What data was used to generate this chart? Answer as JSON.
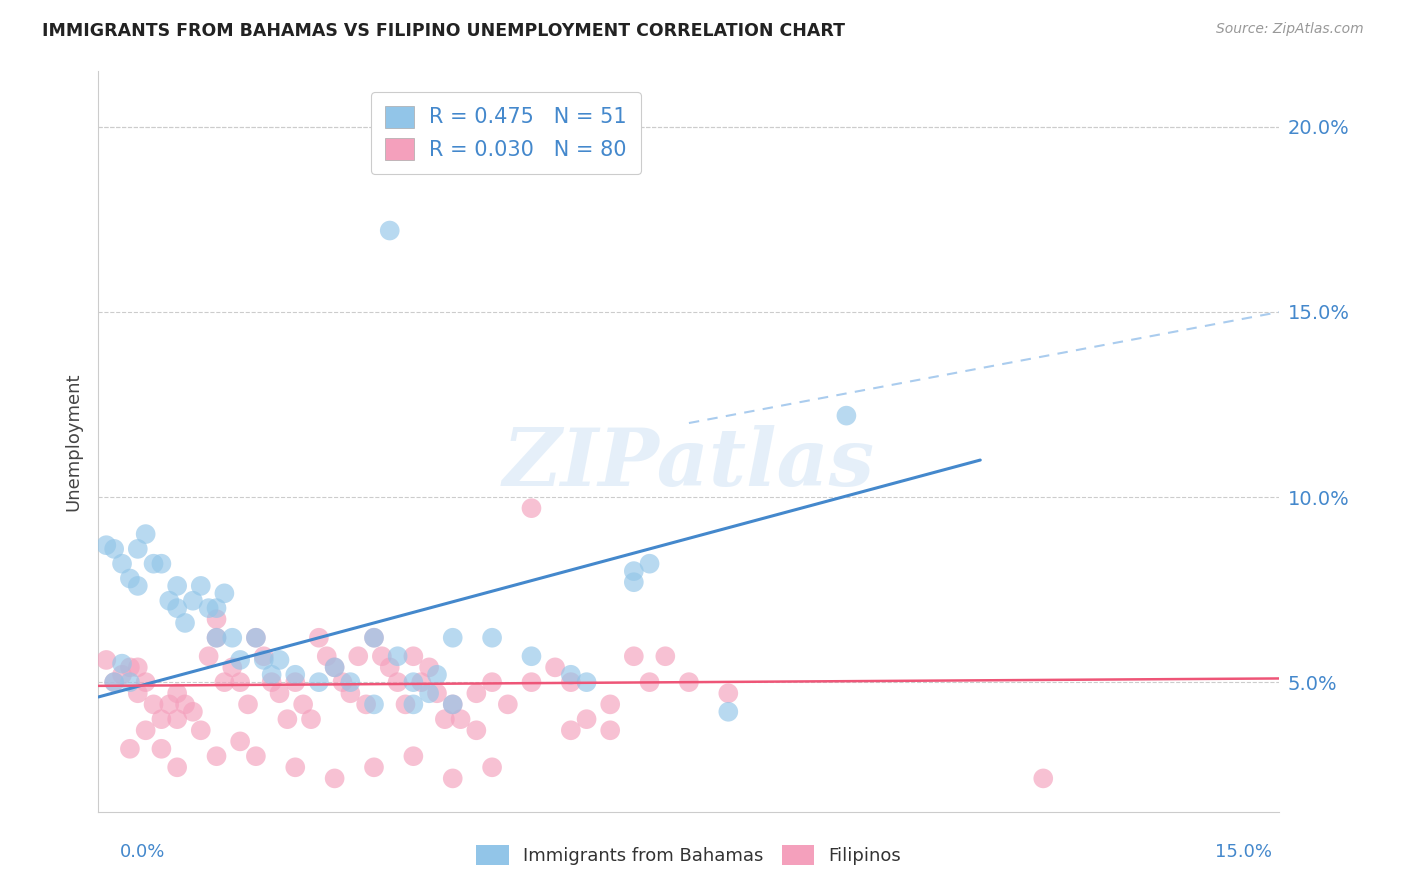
{
  "title": "IMMIGRANTS FROM BAHAMAS VS FILIPINO UNEMPLOYMENT CORRELATION CHART",
  "source": "Source: ZipAtlas.com",
  "ylabel": "Unemployment",
  "xmin": 0.0,
  "xmax": 0.15,
  "ymin": 0.015,
  "ymax": 0.215,
  "yticks": [
    0.05,
    0.1,
    0.15,
    0.2
  ],
  "ytick_labels": [
    "5.0%",
    "10.0%",
    "15.0%",
    "20.0%"
  ],
  "series1_color": "#92C5E8",
  "series2_color": "#F4A0BC",
  "series1_label": "Immigrants from Bahamas",
  "series2_label": "Filipinos",
  "series1_R": 0.475,
  "series1_N": 51,
  "series2_R": 0.03,
  "series2_N": 80,
  "watermark": "ZIPatlas",
  "blue_line_color": "#4488CC",
  "pink_line_color": "#EE5577",
  "dashed_line_color": "#AACCEE",
  "grid_color": "#CCCCCC",
  "axis_label_color": "#4488CC",
  "legend_text_color": "#333333",
  "blue_scatter": [
    [
      0.001,
      0.087
    ],
    [
      0.002,
      0.086
    ],
    [
      0.003,
      0.082
    ],
    [
      0.004,
      0.078
    ],
    [
      0.005,
      0.086
    ],
    [
      0.005,
      0.076
    ],
    [
      0.006,
      0.09
    ],
    [
      0.007,
      0.082
    ],
    [
      0.008,
      0.082
    ],
    [
      0.009,
      0.072
    ],
    [
      0.01,
      0.076
    ],
    [
      0.01,
      0.07
    ],
    [
      0.011,
      0.066
    ],
    [
      0.012,
      0.072
    ],
    [
      0.013,
      0.076
    ],
    [
      0.014,
      0.07
    ],
    [
      0.015,
      0.07
    ],
    [
      0.015,
      0.062
    ],
    [
      0.016,
      0.074
    ],
    [
      0.017,
      0.062
    ],
    [
      0.018,
      0.056
    ],
    [
      0.02,
      0.062
    ],
    [
      0.021,
      0.056
    ],
    [
      0.022,
      0.052
    ],
    [
      0.023,
      0.056
    ],
    [
      0.025,
      0.052
    ],
    [
      0.028,
      0.05
    ],
    [
      0.03,
      0.054
    ],
    [
      0.032,
      0.05
    ],
    [
      0.035,
      0.062
    ],
    [
      0.038,
      0.057
    ],
    [
      0.04,
      0.05
    ],
    [
      0.042,
      0.047
    ],
    [
      0.043,
      0.052
    ],
    [
      0.045,
      0.062
    ],
    [
      0.05,
      0.062
    ],
    [
      0.055,
      0.057
    ],
    [
      0.06,
      0.052
    ],
    [
      0.062,
      0.05
    ],
    [
      0.035,
      0.044
    ],
    [
      0.04,
      0.044
    ],
    [
      0.045,
      0.044
    ],
    [
      0.002,
      0.05
    ],
    [
      0.003,
      0.055
    ],
    [
      0.004,
      0.05
    ],
    [
      0.068,
      0.077
    ],
    [
      0.068,
      0.08
    ],
    [
      0.095,
      0.122
    ],
    [
      0.037,
      0.172
    ],
    [
      0.07,
      0.082
    ],
    [
      0.08,
      0.042
    ]
  ],
  "pink_scatter": [
    [
      0.001,
      0.056
    ],
    [
      0.002,
      0.05
    ],
    [
      0.003,
      0.052
    ],
    [
      0.004,
      0.054
    ],
    [
      0.005,
      0.047
    ],
    [
      0.005,
      0.054
    ],
    [
      0.006,
      0.05
    ],
    [
      0.007,
      0.044
    ],
    [
      0.008,
      0.04
    ],
    [
      0.009,
      0.044
    ],
    [
      0.01,
      0.047
    ],
    [
      0.01,
      0.04
    ],
    [
      0.011,
      0.044
    ],
    [
      0.012,
      0.042
    ],
    [
      0.013,
      0.037
    ],
    [
      0.014,
      0.057
    ],
    [
      0.015,
      0.067
    ],
    [
      0.015,
      0.062
    ],
    [
      0.016,
      0.05
    ],
    [
      0.017,
      0.054
    ],
    [
      0.018,
      0.05
    ],
    [
      0.019,
      0.044
    ],
    [
      0.02,
      0.062
    ],
    [
      0.021,
      0.057
    ],
    [
      0.022,
      0.05
    ],
    [
      0.023,
      0.047
    ],
    [
      0.024,
      0.04
    ],
    [
      0.025,
      0.05
    ],
    [
      0.026,
      0.044
    ],
    [
      0.027,
      0.04
    ],
    [
      0.028,
      0.062
    ],
    [
      0.029,
      0.057
    ],
    [
      0.03,
      0.054
    ],
    [
      0.031,
      0.05
    ],
    [
      0.032,
      0.047
    ],
    [
      0.033,
      0.057
    ],
    [
      0.034,
      0.044
    ],
    [
      0.035,
      0.062
    ],
    [
      0.036,
      0.057
    ],
    [
      0.037,
      0.054
    ],
    [
      0.038,
      0.05
    ],
    [
      0.039,
      0.044
    ],
    [
      0.04,
      0.057
    ],
    [
      0.041,
      0.05
    ],
    [
      0.042,
      0.054
    ],
    [
      0.043,
      0.047
    ],
    [
      0.044,
      0.04
    ],
    [
      0.045,
      0.044
    ],
    [
      0.046,
      0.04
    ],
    [
      0.048,
      0.047
    ],
    [
      0.05,
      0.05
    ],
    [
      0.052,
      0.044
    ],
    [
      0.055,
      0.05
    ],
    [
      0.058,
      0.054
    ],
    [
      0.06,
      0.037
    ],
    [
      0.062,
      0.04
    ],
    [
      0.065,
      0.044
    ],
    [
      0.068,
      0.057
    ],
    [
      0.07,
      0.05
    ],
    [
      0.072,
      0.057
    ],
    [
      0.075,
      0.05
    ],
    [
      0.08,
      0.047
    ],
    [
      0.008,
      0.032
    ],
    [
      0.01,
      0.027
    ],
    [
      0.015,
      0.03
    ],
    [
      0.018,
      0.034
    ],
    [
      0.02,
      0.03
    ],
    [
      0.025,
      0.027
    ],
    [
      0.03,
      0.024
    ],
    [
      0.035,
      0.027
    ],
    [
      0.04,
      0.03
    ],
    [
      0.045,
      0.024
    ],
    [
      0.004,
      0.032
    ],
    [
      0.006,
      0.037
    ],
    [
      0.06,
      0.05
    ],
    [
      0.055,
      0.097
    ],
    [
      0.12,
      0.024
    ],
    [
      0.048,
      0.037
    ],
    [
      0.05,
      0.027
    ],
    [
      0.065,
      0.037
    ]
  ],
  "blue_line_x": [
    0.0,
    0.112
  ],
  "blue_line_y": [
    0.046,
    0.11
  ],
  "dashed_line_x": [
    0.075,
    0.15
  ],
  "dashed_line_y": [
    0.12,
    0.15
  ],
  "pink_line_x": [
    0.0,
    0.15
  ],
  "pink_line_y": [
    0.049,
    0.051
  ]
}
